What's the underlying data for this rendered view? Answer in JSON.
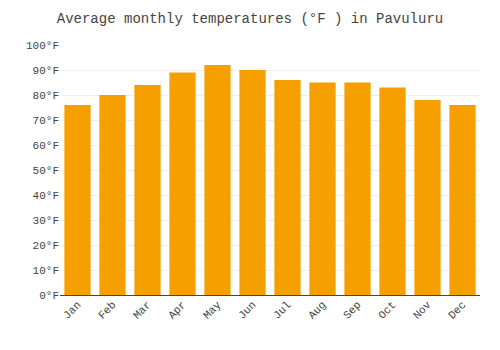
{
  "chart_data": {
    "type": "bar",
    "title": "Average monthly temperatures (°F ) in Pavuluru",
    "categories": [
      "Jan",
      "Feb",
      "Mar",
      "Apr",
      "May",
      "Jun",
      "Jul",
      "Aug",
      "Sep",
      "Oct",
      "Nov",
      "Dec"
    ],
    "values": [
      76,
      80,
      84,
      89,
      92,
      90,
      86,
      85,
      85,
      83,
      78,
      76
    ],
    "color": "#F5A000",
    "ylim": [
      0,
      100
    ],
    "yticks": [
      {
        "value": 0,
        "label": "0°F"
      },
      {
        "value": 10,
        "label": "10°F"
      },
      {
        "value": 20,
        "label": "20°F"
      },
      {
        "value": 30,
        "label": "30°F"
      },
      {
        "value": 40,
        "label": "40°F"
      },
      {
        "value": 50,
        "label": "50°F"
      },
      {
        "value": 60,
        "label": "60°F"
      },
      {
        "value": 70,
        "label": "70°F"
      },
      {
        "value": 80,
        "label": "80°F"
      },
      {
        "value": 90,
        "label": "90°F"
      },
      {
        "value": 100,
        "label": "100°F"
      }
    ],
    "grid": true
  }
}
